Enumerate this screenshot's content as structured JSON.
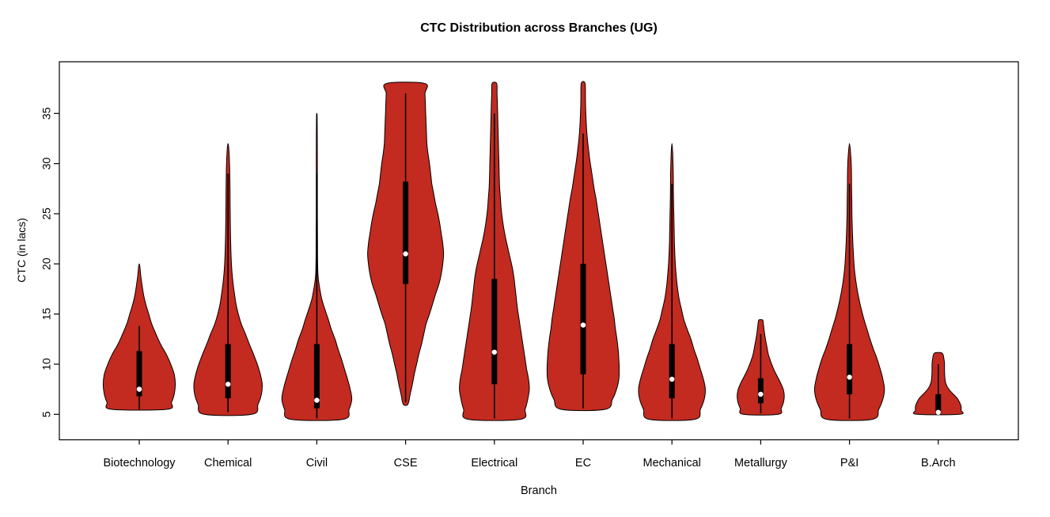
{
  "page": {
    "title": "CTC Distribution across Branches (UG)",
    "xlabel": "Branch",
    "ylabel": "CTC (in lacs)"
  },
  "chart_data": {
    "type": "violin",
    "title": "CTC Distribution across Branches (UG)",
    "xlabel": "Branch",
    "ylabel": "CTC (in lacs)",
    "ylim": [
      2.5,
      40.5
    ],
    "yticks": [
      5,
      10,
      15,
      20,
      25,
      30,
      35
    ],
    "categories": [
      "Biotechnology",
      "Chemical",
      "Civil",
      "CSE",
      "Electrical",
      "EC",
      "Mechanical",
      "Metallurgy",
      "P&I",
      "B.Arch"
    ],
    "violin_fill": "#C32A20",
    "violin_stroke": "#000000",
    "box_color": "#000000",
    "median_dot_color": "#ffffff",
    "grid": false,
    "series": [
      {
        "branch": "Biotechnology",
        "id": "biotechnology",
        "min": 5.5,
        "max": 20,
        "q1": 6.8,
        "median": 7.5,
        "q3": 11.3,
        "whisker_low": 5.5,
        "whisker_high": 13.8,
        "flat_top": false,
        "profile": [
          [
            5.5,
            0.73
          ],
          [
            6.2,
            0.85
          ],
          [
            7,
            0.92
          ],
          [
            8,
            0.95
          ],
          [
            9,
            0.92
          ],
          [
            10,
            0.83
          ],
          [
            11,
            0.71
          ],
          [
            12,
            0.56
          ],
          [
            13,
            0.44
          ],
          [
            14,
            0.33
          ],
          [
            15,
            0.25
          ],
          [
            16,
            0.17
          ],
          [
            17,
            0.11
          ],
          [
            18.5,
            0.05
          ],
          [
            20,
            0
          ]
        ]
      },
      {
        "branch": "Chemical",
        "id": "chemical",
        "min": 5,
        "max": 32,
        "q1": 6.6,
        "median": 8,
        "q3": 12,
        "whisker_low": 5.2,
        "whisker_high": 29,
        "flat_top": false,
        "profile": [
          [
            5,
            0.63
          ],
          [
            6,
            0.79
          ],
          [
            7,
            0.88
          ],
          [
            8,
            0.9
          ],
          [
            9,
            0.85
          ],
          [
            10,
            0.77
          ],
          [
            11,
            0.67
          ],
          [
            12,
            0.56
          ],
          [
            13,
            0.46
          ],
          [
            14,
            0.35
          ],
          [
            15,
            0.27
          ],
          [
            16,
            0.21
          ],
          [
            17,
            0.17
          ],
          [
            18.5,
            0.12
          ],
          [
            20,
            0.09
          ],
          [
            22,
            0.07
          ],
          [
            24,
            0.06
          ],
          [
            26,
            0.055
          ],
          [
            28,
            0.05
          ],
          [
            30,
            0.04
          ],
          [
            31.5,
            0.02
          ],
          [
            32,
            0
          ]
        ]
      },
      {
        "branch": "Civil",
        "id": "civil",
        "min": 4.5,
        "max": 35,
        "q1": 5.6,
        "median": 6.4,
        "q3": 12,
        "whisker_low": 4.6,
        "whisker_high": 29,
        "flat_top": false,
        "profile": [
          [
            4.5,
            0.69
          ],
          [
            5.5,
            0.85
          ],
          [
            6.5,
            0.92
          ],
          [
            7.5,
            0.88
          ],
          [
            8.5,
            0.81
          ],
          [
            9.5,
            0.73
          ],
          [
            10.5,
            0.65
          ],
          [
            11.5,
            0.56
          ],
          [
            12.5,
            0.48
          ],
          [
            13.5,
            0.38
          ],
          [
            14.5,
            0.3
          ],
          [
            15.5,
            0.21
          ],
          [
            16.5,
            0.13
          ],
          [
            17.5,
            0.08
          ],
          [
            18.5,
            0.04
          ],
          [
            19.5,
            0.025
          ],
          [
            22,
            0.018
          ],
          [
            26,
            0.015
          ],
          [
            30,
            0.015
          ],
          [
            33,
            0.012
          ],
          [
            34.7,
            0.008
          ],
          [
            35,
            0
          ]
        ]
      },
      {
        "branch": "CSE",
        "id": "cse",
        "min": 6,
        "max": 38,
        "q1": 18,
        "median": 21,
        "q3": 28.2,
        "whisker_low": 6.2,
        "whisker_high": 37,
        "flat_top": true,
        "profile": [
          [
            6,
            0.06
          ],
          [
            7,
            0.12
          ],
          [
            8,
            0.18
          ],
          [
            9,
            0.23
          ],
          [
            10,
            0.29
          ],
          [
            11,
            0.35
          ],
          [
            12,
            0.42
          ],
          [
            13,
            0.48
          ],
          [
            14,
            0.54
          ],
          [
            15,
            0.63
          ],
          [
            16,
            0.71
          ],
          [
            17,
            0.79
          ],
          [
            18,
            0.88
          ],
          [
            19,
            0.94
          ],
          [
            20,
            0.98
          ],
          [
            21,
            1.0
          ],
          [
            22,
            0.98
          ],
          [
            23,
            0.94
          ],
          [
            24,
            0.9
          ],
          [
            25,
            0.85
          ],
          [
            26,
            0.79
          ],
          [
            27,
            0.74
          ],
          [
            28,
            0.69
          ],
          [
            29,
            0.66
          ],
          [
            30,
            0.63
          ],
          [
            31,
            0.59
          ],
          [
            32,
            0.56
          ],
          [
            33,
            0.55
          ],
          [
            34,
            0.54
          ],
          [
            35,
            0.53
          ],
          [
            36,
            0.52
          ],
          [
            37,
            0.51
          ],
          [
            38,
            0.5
          ]
        ]
      },
      {
        "branch": "Electrical",
        "id": "electrical",
        "min": 4.5,
        "max": 38,
        "q1": 8,
        "median": 11.2,
        "q3": 18.5,
        "whisker_low": 4.6,
        "whisker_high": 35,
        "flat_top": true,
        "profile": [
          [
            4.5,
            0.69
          ],
          [
            5.5,
            0.81
          ],
          [
            6.5,
            0.88
          ],
          [
            7.5,
            0.92
          ],
          [
            8.5,
            0.9
          ],
          [
            9.5,
            0.85
          ],
          [
            10.5,
            0.81
          ],
          [
            11.5,
            0.77
          ],
          [
            12.5,
            0.73
          ],
          [
            13.5,
            0.69
          ],
          [
            14.5,
            0.65
          ],
          [
            15.5,
            0.61
          ],
          [
            16.5,
            0.58
          ],
          [
            17.5,
            0.55
          ],
          [
            18.5,
            0.52
          ],
          [
            19.5,
            0.48
          ],
          [
            20.5,
            0.42
          ],
          [
            21.5,
            0.36
          ],
          [
            22.5,
            0.3
          ],
          [
            23.5,
            0.25
          ],
          [
            24.5,
            0.21
          ],
          [
            25.5,
            0.18
          ],
          [
            26.5,
            0.16
          ],
          [
            27.5,
            0.14
          ],
          [
            28.5,
            0.13
          ],
          [
            30,
            0.12
          ],
          [
            31.5,
            0.11
          ],
          [
            33,
            0.1
          ],
          [
            34.5,
            0.09
          ],
          [
            36,
            0.08
          ],
          [
            37,
            0.07
          ],
          [
            38,
            0.06
          ]
        ]
      },
      {
        "branch": "EC",
        "id": "ec",
        "min": 5.5,
        "max": 38,
        "q1": 9,
        "median": 13.9,
        "q3": 20,
        "whisker_low": 5.6,
        "whisker_high": 33,
        "flat_top": true,
        "profile": [
          [
            5.5,
            0.58
          ],
          [
            6.5,
            0.77
          ],
          [
            7.5,
            0.88
          ],
          [
            8.5,
            0.94
          ],
          [
            9.5,
            0.95
          ],
          [
            10.5,
            0.94
          ],
          [
            11.5,
            0.92
          ],
          [
            12.5,
            0.89
          ],
          [
            13.5,
            0.85
          ],
          [
            14.5,
            0.82
          ],
          [
            15.5,
            0.78
          ],
          [
            16.5,
            0.74
          ],
          [
            17.5,
            0.7
          ],
          [
            18.5,
            0.66
          ],
          [
            19.5,
            0.62
          ],
          [
            20.5,
            0.58
          ],
          [
            21.5,
            0.54
          ],
          [
            22.5,
            0.5
          ],
          [
            23.5,
            0.46
          ],
          [
            24.5,
            0.42
          ],
          [
            25.5,
            0.38
          ],
          [
            26.5,
            0.34
          ],
          [
            27.5,
            0.29
          ],
          [
            28.5,
            0.25
          ],
          [
            29.5,
            0.21
          ],
          [
            30.5,
            0.17
          ],
          [
            31.5,
            0.14
          ],
          [
            32.5,
            0.11
          ],
          [
            33.5,
            0.09
          ],
          [
            35,
            0.07
          ],
          [
            36.5,
            0.06
          ],
          [
            38,
            0.05
          ]
        ]
      },
      {
        "branch": "Mechanical",
        "id": "mechanical",
        "min": 4.5,
        "max": 32,
        "q1": 6.6,
        "median": 8.5,
        "q3": 12,
        "whisker_low": 4.6,
        "whisker_high": 28,
        "flat_top": false,
        "profile": [
          [
            4.5,
            0.6
          ],
          [
            5.5,
            0.75
          ],
          [
            6.5,
            0.85
          ],
          [
            7.5,
            0.88
          ],
          [
            8.5,
            0.83
          ],
          [
            9.5,
            0.75
          ],
          [
            10.5,
            0.67
          ],
          [
            11.5,
            0.58
          ],
          [
            12.5,
            0.5
          ],
          [
            13.5,
            0.4
          ],
          [
            14.5,
            0.31
          ],
          [
            15.5,
            0.25
          ],
          [
            16.5,
            0.19
          ],
          [
            17.5,
            0.15
          ],
          [
            18.5,
            0.12
          ],
          [
            20,
            0.09
          ],
          [
            21.5,
            0.07
          ],
          [
            23,
            0.06
          ],
          [
            25,
            0.05
          ],
          [
            27,
            0.04
          ],
          [
            29,
            0.035
          ],
          [
            31,
            0.02
          ],
          [
            32,
            0
          ]
        ]
      },
      {
        "branch": "Metallurgy",
        "id": "metallurgy",
        "min": 5,
        "max": 14.4,
        "q1": 6.1,
        "median": 7,
        "q3": 8.6,
        "whisker_low": 5.1,
        "whisker_high": 13,
        "flat_top": true,
        "profile": [
          [
            5,
            0.46
          ],
          [
            5.6,
            0.54
          ],
          [
            6.2,
            0.6
          ],
          [
            6.8,
            0.62
          ],
          [
            7.4,
            0.6
          ],
          [
            8,
            0.54
          ],
          [
            8.6,
            0.46
          ],
          [
            9.2,
            0.38
          ],
          [
            9.8,
            0.31
          ],
          [
            10.4,
            0.25
          ],
          [
            11,
            0.2
          ],
          [
            11.8,
            0.16
          ],
          [
            12.6,
            0.12
          ],
          [
            13.4,
            0.09
          ],
          [
            14,
            0.07
          ],
          [
            14.4,
            0.05
          ]
        ]
      },
      {
        "branch": "P&I",
        "id": "p-and-i",
        "min": 4.5,
        "max": 32,
        "q1": 7,
        "median": 8.7,
        "q3": 12,
        "whisker_low": 4.6,
        "whisker_high": 28,
        "flat_top": false,
        "profile": [
          [
            4.5,
            0.6
          ],
          [
            5.5,
            0.77
          ],
          [
            6.5,
            0.88
          ],
          [
            7.5,
            0.92
          ],
          [
            8.5,
            0.88
          ],
          [
            9.5,
            0.81
          ],
          [
            10.5,
            0.73
          ],
          [
            11.5,
            0.63
          ],
          [
            12.5,
            0.54
          ],
          [
            13.5,
            0.46
          ],
          [
            14.5,
            0.38
          ],
          [
            15.5,
            0.31
          ],
          [
            16.5,
            0.25
          ],
          [
            17.5,
            0.2
          ],
          [
            18.5,
            0.16
          ],
          [
            19.5,
            0.13
          ],
          [
            20.5,
            0.11
          ],
          [
            22,
            0.09
          ],
          [
            23.5,
            0.075
          ],
          [
            25,
            0.065
          ],
          [
            26.5,
            0.06
          ],
          [
            28,
            0.055
          ],
          [
            29.5,
            0.05
          ],
          [
            30.7,
            0.035
          ],
          [
            32,
            0
          ]
        ]
      },
      {
        "branch": "B.Arch",
        "id": "b-arch",
        "min": 5,
        "max": 11.1,
        "q1": 5,
        "median": 5.2,
        "q3": 7,
        "whisker_low": 5,
        "whisker_high": 10,
        "flat_top": true,
        "profile": [
          [
            5,
            0.56
          ],
          [
            5.4,
            0.6
          ],
          [
            5.8,
            0.6
          ],
          [
            6.2,
            0.56
          ],
          [
            6.6,
            0.5
          ],
          [
            7,
            0.4
          ],
          [
            7.4,
            0.3
          ],
          [
            7.8,
            0.23
          ],
          [
            8.2,
            0.19
          ],
          [
            8.8,
            0.17
          ],
          [
            9.4,
            0.165
          ],
          [
            10,
            0.165
          ],
          [
            10.5,
            0.15
          ],
          [
            11.1,
            0.1
          ]
        ]
      }
    ]
  }
}
